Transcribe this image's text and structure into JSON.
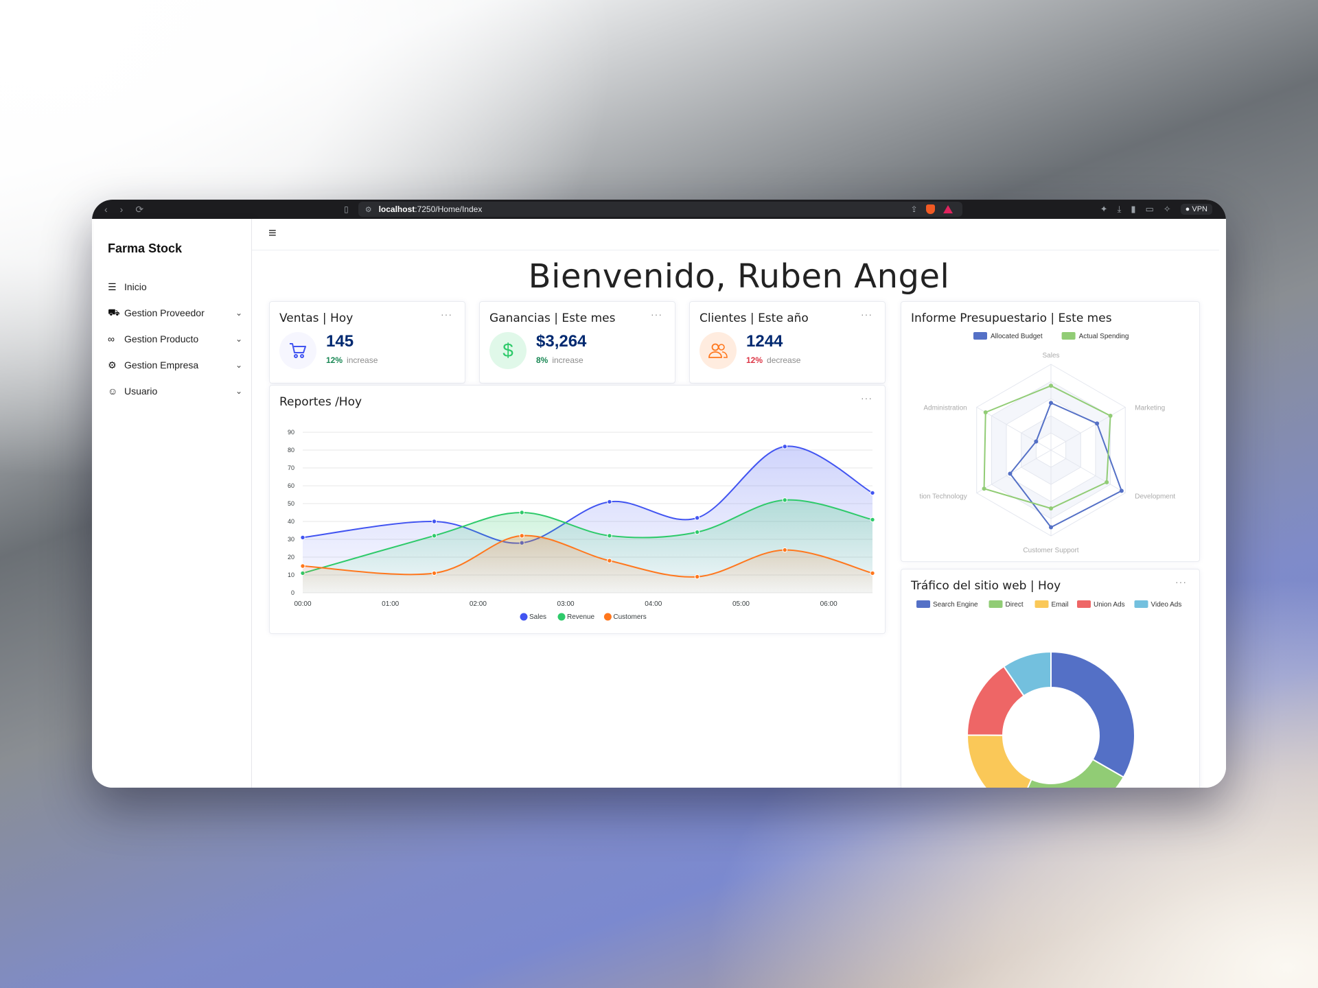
{
  "browser": {
    "url_host": "localhost",
    "url_path": ":7250/Home/Index",
    "vpn_label": "VPN"
  },
  "sidebar": {
    "brand": "Farma Stock",
    "items": [
      {
        "label": "Inicio",
        "icon": "list-icon"
      },
      {
        "label": "Gestion Proveedor",
        "icon": "truck-icon"
      },
      {
        "label": "Gestion Producto",
        "icon": "binoculars-icon"
      },
      {
        "label": "Gestion Empresa",
        "icon": "gear-icon"
      },
      {
        "label": "Usuario",
        "icon": "person-icon"
      }
    ]
  },
  "header": {
    "welcome": "Bienvenido, Ruben Angel"
  },
  "cards": {
    "ventas": {
      "title": "Ventas | Hoy",
      "value": "145",
      "pct": "12%",
      "trend": "increase",
      "pct_color": "#198754",
      "icon": "cart-icon"
    },
    "ganancias": {
      "title": "Ganancias | Este mes",
      "value": "$3,264",
      "pct": "8%",
      "trend": "increase",
      "pct_color": "#198754",
      "icon": "dollar-icon"
    },
    "clientes": {
      "title": "Clientes | Este año",
      "value": "1244",
      "pct": "12%",
      "trend": "decrease",
      "pct_color": "#dc3545",
      "icon": "people-icon"
    }
  },
  "reportes": {
    "title": "Reportes /Hoy"
  },
  "presupuesto": {
    "title": "Informe Presupuestario | Este mes"
  },
  "trafico": {
    "title": "Tráfico del sitio web | Hoy"
  },
  "chart_data": [
    {
      "type": "area",
      "x": [
        "00:00",
        "01:30",
        "02:30",
        "03:30",
        "04:30",
        "05:30",
        "06:30"
      ],
      "xticks": [
        "00:00",
        "01:00",
        "02:00",
        "03:00",
        "04:00",
        "05:00",
        "06:00"
      ],
      "ylim": [
        0,
        90
      ],
      "yticks": [
        0,
        10,
        20,
        30,
        40,
        50,
        60,
        70,
        80,
        90
      ],
      "legend_position": "bottom",
      "series": [
        {
          "name": "Sales",
          "color": "#4154f1",
          "values": [
            31,
            40,
            28,
            51,
            42,
            82,
            56
          ]
        },
        {
          "name": "Revenue",
          "color": "#2eca6a",
          "values": [
            11,
            32,
            45,
            32,
            34,
            52,
            41
          ]
        },
        {
          "name": "Customers",
          "color": "#ff771d",
          "values": [
            15,
            11,
            32,
            18,
            9,
            24,
            11
          ]
        }
      ]
    },
    {
      "type": "radar",
      "indicators": [
        "Sales",
        "Marketing",
        "Development",
        "Customer Support",
        "tion Technology",
        "Administration"
      ],
      "max": 100,
      "legend_position": "top",
      "series": [
        {
          "name": "Allocated Budget",
          "color": "#5470c6",
          "values": [
            55,
            62,
            95,
            90,
            55,
            20
          ]
        },
        {
          "name": "Actual Spending",
          "color": "#91cc75",
          "values": [
            75,
            80,
            75,
            68,
            90,
            88
          ]
        }
      ]
    },
    {
      "type": "pie",
      "legend_position": "top",
      "slices": [
        {
          "name": "Search Engine",
          "color": "#5470c6",
          "value": 1048
        },
        {
          "name": "Direct",
          "color": "#91cc75",
          "value": 735
        },
        {
          "name": "Email",
          "color": "#fac858",
          "value": 580
        },
        {
          "name": "Union Ads",
          "color": "#ee6666",
          "value": 484
        },
        {
          "name": "Video Ads",
          "color": "#73c0de",
          "value": 300
        }
      ]
    }
  ]
}
